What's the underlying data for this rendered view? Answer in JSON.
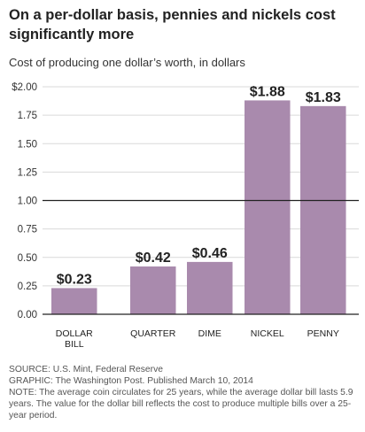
{
  "header": {
    "title": "On a per-dollar basis, pennies and nickels cost significantly more",
    "subtitle": "Cost of producing one dollar’s worth, in dollars"
  },
  "chart_data": {
    "type": "bar",
    "title": "On a per-dollar basis, pennies and nickels cost significantly more",
    "subtitle": "Cost of producing one dollar’s worth, in dollars",
    "categories": [
      "DOLLAR BILL",
      "QUARTER",
      "DIME",
      "NICKEL",
      "PENNY"
    ],
    "category_lines": [
      [
        "DOLLAR",
        "BILL"
      ],
      [
        "QUARTER"
      ],
      [
        "DIME"
      ],
      [
        "NICKEL"
      ],
      [
        "PENNY"
      ]
    ],
    "values": [
      0.23,
      0.42,
      0.46,
      1.88,
      1.83
    ],
    "value_labels": [
      "$0.23",
      "$0.42",
      "$0.46",
      "$1.88",
      "$1.83"
    ],
    "ylim": [
      0,
      2.0
    ],
    "y_ticks": [
      0,
      0.25,
      0.5,
      0.75,
      1.0,
      1.25,
      1.5,
      1.75,
      2.0
    ],
    "y_tick_labels": [
      "0.00",
      "0.25",
      "0.50",
      "0.75",
      "1.00",
      "1.25",
      "1.50",
      "1.75",
      "$2.00"
    ],
    "reference_line": 1.0,
    "grid": true,
    "bar_color": "#a98aad",
    "reference_line_color": "#222222"
  },
  "footer": {
    "source": "SOURCE: U.S. Mint, Federal Reserve",
    "graphic": "GRAPHIC: The Washington Post. Published March 10, 2014",
    "note": "NOTE: The average coin circulates for 25 years, while the average dollar bill lasts 5.9 years. The value for the dollar bill reflects the cost to produce multiple bills over a 25-year period."
  }
}
